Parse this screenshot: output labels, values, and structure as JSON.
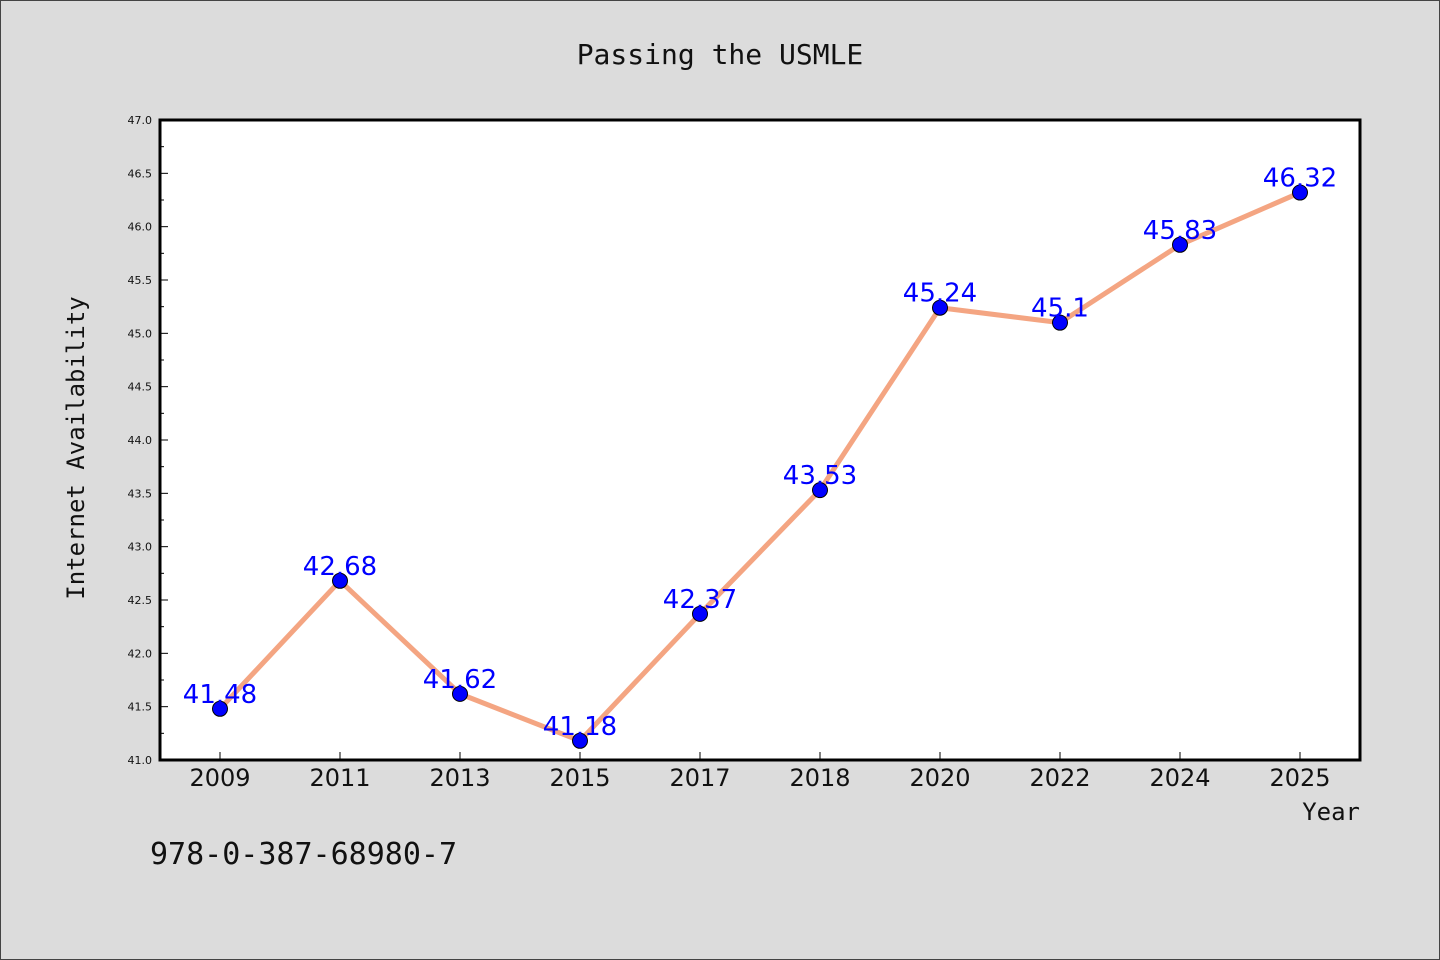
{
  "chart_data": {
    "type": "line",
    "title": "Passing the USMLE",
    "xlabel": "Year",
    "ylabel": "Internet Availability",
    "categories": [
      "2009",
      "2011",
      "2013",
      "2015",
      "2017",
      "2018",
      "2020",
      "2022",
      "2024",
      "2025"
    ],
    "series": [
      {
        "values": [
          41.48,
          42.68,
          41.62,
          41.18,
          42.37,
          43.53,
          45.24,
          45.1,
          45.83,
          46.32
        ],
        "line_color": "#f4a582",
        "marker_color": "#0000ff"
      }
    ],
    "data_labels": [
      "41.48",
      "42.68",
      "41.62",
      "41.18",
      "42.37",
      "43.53",
      "45.24",
      "45.1",
      "45.83",
      "46.32"
    ],
    "ylim": [
      41.0,
      47.0
    ],
    "yticks": [
      "41.0",
      "41.5",
      "42.0",
      "42.5",
      "43.0",
      "43.5",
      "44.0",
      "44.5",
      "45.0",
      "45.5",
      "46.0",
      "46.5",
      "47.0"
    ],
    "grid": false,
    "legend": "none"
  },
  "caption": "978-0-387-68980-7"
}
